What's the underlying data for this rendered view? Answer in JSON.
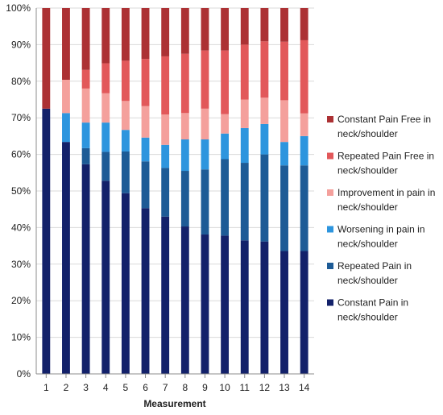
{
  "chart_data": {
    "type": "bar",
    "stacked": true,
    "percent_stacked": true,
    "title": "",
    "xlabel": "Measurement",
    "ylabel": "",
    "ylim": [
      0,
      100
    ],
    "yticks": [
      "0%",
      "10%",
      "20%",
      "30%",
      "40%",
      "50%",
      "60%",
      "70%",
      "80%",
      "90%",
      "100%"
    ],
    "categories": [
      "1",
      "2",
      "3",
      "4",
      "5",
      "6",
      "7",
      "8",
      "9",
      "10",
      "11",
      "12",
      "13",
      "14"
    ],
    "grid": true,
    "legend_position": "right",
    "series": [
      {
        "name": "Constant Pain in neck/shoulder",
        "legend_lines": [
          "Constant Pain in",
          "neck/shoulder"
        ],
        "color": "#13216a",
        "values": [
          72.5,
          63.4,
          57.3,
          52.8,
          49.4,
          45.3,
          43.0,
          40.3,
          38.1,
          37.8,
          36.5,
          36.2,
          33.6,
          33.6
        ]
      },
      {
        "name": "Repeated Pain in neck/shoulder",
        "legend_lines": [
          "Repeated Pain in",
          "neck/shoulder"
        ],
        "color": "#1d5b96",
        "values": [
          0.0,
          0.0,
          4.4,
          7.9,
          11.4,
          12.8,
          13.3,
          15.2,
          17.8,
          20.9,
          21.2,
          23.8,
          23.4,
          23.4
        ]
      },
      {
        "name": "Worsening in pain in neck/shoulder",
        "legend_lines": [
          "Worsening in pain in",
          "neck/shoulder"
        ],
        "color": "#2d95de",
        "values": [
          0.0,
          7.9,
          7.0,
          8.0,
          5.9,
          6.5,
          6.3,
          8.6,
          8.2,
          7.0,
          9.5,
          8.3,
          6.4,
          8.0
        ]
      },
      {
        "name": "Improvement in pain in neck/shoulder",
        "legend_lines": [
          "Improvement in pain in",
          "neck/shoulder"
        ],
        "color": "#f4a09c",
        "values": [
          0.0,
          9.1,
          9.3,
          8.0,
          7.9,
          8.6,
          8.3,
          7.2,
          8.4,
          5.3,
          7.8,
          7.2,
          11.4,
          6.2
        ]
      },
      {
        "name": "Repeated Pain Free in neck/shoulder",
        "legend_lines": [
          "Repeated Pain Free in",
          "neck/shoulder"
        ],
        "color": "#e2585a",
        "values": [
          0.0,
          0.0,
          5.1,
          8.2,
          11.0,
          12.9,
          15.9,
          16.2,
          15.9,
          17.4,
          15.0,
          15.4,
          16.0,
          20.0
        ]
      },
      {
        "name": "Constant Pain Free in neck/shoulder",
        "legend_lines": [
          "Constant Pain Free in",
          "neck/shoulder"
        ],
        "color": "#ac3134",
        "values": [
          27.5,
          19.6,
          16.9,
          15.1,
          14.4,
          13.9,
          13.2,
          12.5,
          11.6,
          11.6,
          10.0,
          9.1,
          9.2,
          8.8
        ]
      }
    ]
  }
}
